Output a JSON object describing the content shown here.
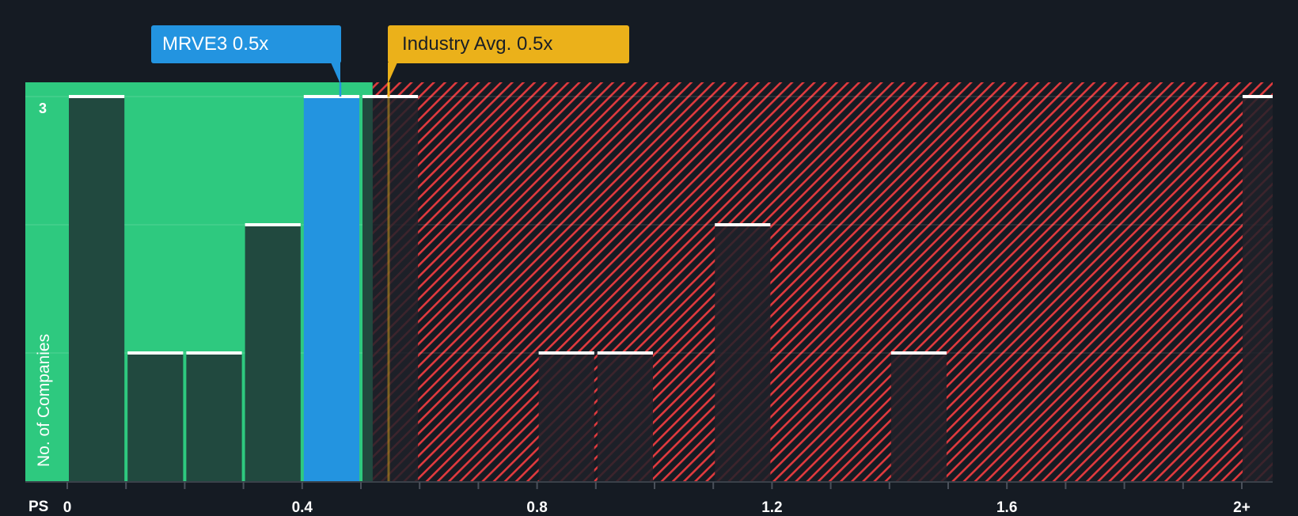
{
  "chart_data": {
    "type": "bar",
    "title": "",
    "xlabel": "PS",
    "ylabel": "No. of Companies",
    "x_tick_labels": [
      "0",
      "0.4",
      "0.8",
      "1.2",
      "1.6",
      "2+"
    ],
    "x_tick_values": [
      0,
      0.4,
      0.8,
      1.2,
      1.6,
      2.0
    ],
    "y_tick_labels": [
      "3"
    ],
    "ylim": [
      0,
      3
    ],
    "grid": true,
    "bin_width": 0.1,
    "categories": [
      "0-0.1",
      "0.1-0.2",
      "0.2-0.3",
      "0.3-0.4",
      "0.4-0.5",
      "0.5-0.6",
      "0.6-0.7",
      "0.7-0.8",
      "0.8-0.9",
      "0.9-1.0",
      "1.0-1.1",
      "1.1-1.2",
      "1.2-1.3",
      "1.3-1.4",
      "1.4-1.5",
      "1.5-1.6",
      "1.6-1.7",
      "1.7-1.8",
      "1.8-1.9",
      "1.9-2.0",
      "2+"
    ],
    "values": [
      3,
      1,
      1,
      2,
      3,
      3,
      0,
      0,
      1,
      1,
      0,
      2,
      0,
      0,
      1,
      0,
      0,
      0,
      0,
      0,
      3
    ],
    "highlight_bin": "0.4-0.5",
    "annotations": [
      {
        "label": "MRVE3 0.5x",
        "value": 0.46,
        "color": "#2394e0"
      },
      {
        "label": "Industry Avg. 0.5x",
        "value": 0.545,
        "color": "#ebb11a"
      }
    ],
    "regions": [
      {
        "name": "undervalued",
        "from": 0,
        "to": 0.52,
        "color": "#2ec97f"
      },
      {
        "name": "overvalued",
        "from": 0.52,
        "to": 2.1,
        "color": "#e03a3e",
        "pattern": "diagonal-hatch"
      }
    ]
  },
  "labels": {
    "company_callout": "MRVE3 0.5x",
    "industry_callout": "Industry Avg. 0.5x",
    "x_axis_name": "PS",
    "y_axis_name": "No. of Companies",
    "y_max_tick": "3"
  },
  "colors": {
    "background": "#151b23",
    "undervalued_zone": "#2ec97f",
    "bar_in_green": "#21493f",
    "bar_in_red": "#1e2129",
    "highlight_bar": "#2394e0",
    "hatch": "#e03a3e",
    "industry_line": "#ebb11a",
    "bar_cap": "#ffffff"
  }
}
